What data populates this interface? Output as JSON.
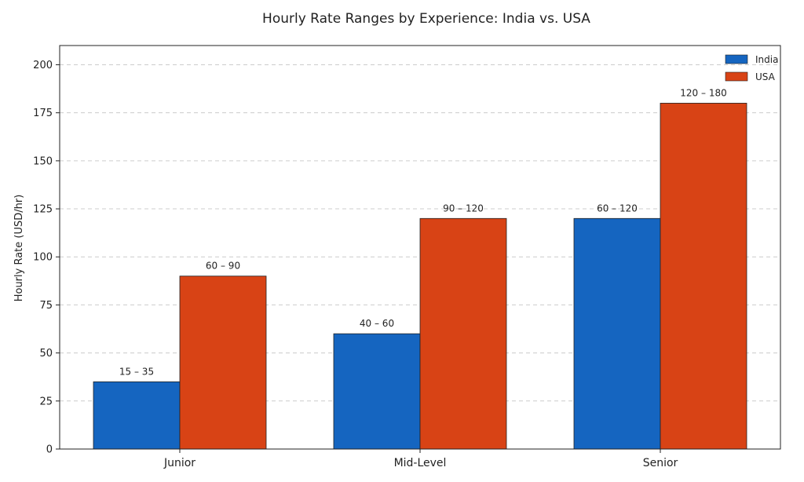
{
  "chart_data": {
    "type": "bar",
    "title": "Hourly Rate Ranges by Experience: India vs. USA",
    "xlabel": "",
    "ylabel": "Hourly Rate (USD/hr)",
    "categories": [
      "Junior",
      "Mid-Level",
      "Senior"
    ],
    "series": [
      {
        "name": "India",
        "color": "#1565c0",
        "values": [
          35,
          60,
          120
        ],
        "labels": [
          "15 – 35",
          "40 – 60",
          "60 – 120"
        ]
      },
      {
        "name": "USA",
        "color": "#d84315",
        "values": [
          90,
          120,
          180
        ],
        "labels": [
          "60 – 90",
          "90 – 120",
          "120 – 180"
        ]
      }
    ],
    "ylim": [
      0,
      210
    ],
    "yticks": [
      0,
      25,
      50,
      75,
      100,
      125,
      150,
      175,
      200
    ],
    "grid": true,
    "legend_position": "top-right"
  }
}
